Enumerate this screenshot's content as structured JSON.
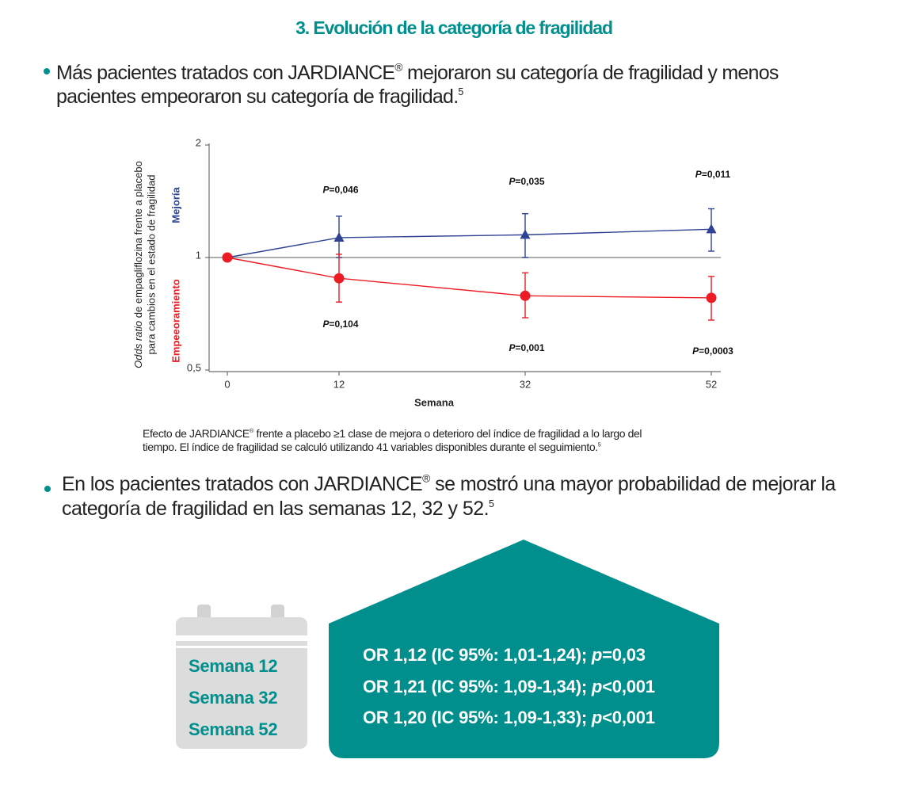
{
  "title": "3. Evolución de la categoría de fragilidad",
  "colors": {
    "teal": "#008f8c",
    "improvement_blue": "#2f4293",
    "worsening_red": "#ed1c24",
    "axis_gray": "#6d6d6d",
    "calendar_gray": "#dcdcdc"
  },
  "bullets": [
    {
      "text_a": "Más pacientes tratados con JARDIANCE",
      "reg": "®",
      "text_b": " mejoraron su categoría de fragilidad y menos",
      "text_c": "pacientes empeoraron su categoría de fragilidad.",
      "ref": "5"
    },
    {
      "text_a": "En los pacientes tratados con JARDIANCE",
      "reg": "®",
      "text_b": " se mostró una mayor probabilidad de mejorar la",
      "text_c": "categoría de fragilidad en las semanas 12, 32 y 52.",
      "ref": "5"
    }
  ],
  "caption": {
    "text_a": "Efecto de JARDIANCE",
    "reg": "®",
    "text_b": " frente a placebo ≥1 clase de mejora o deterioro del índice de fragilidad a lo largo del",
    "text_c": "tiempo. El índice de fragilidad se calculó utilizando 41 variables disponibles durante el seguimiento.",
    "ref": "5"
  },
  "chart_data": {
    "type": "line",
    "title": "",
    "xlabel": "Semana",
    "ylabel": "Odds ratio de empagliflozina frente a placebo para cambios en el estado de fragilidad",
    "ylabel_line1_italic": "Odds ratio",
    "ylabel_line1_rest": " de empagliflozina frente a placebo",
    "ylabel_line2": "para cambios en el estado de fragilidad",
    "y_scale": "log",
    "ylim": [
      0.5,
      2
    ],
    "yticks": [
      {
        "value": 2,
        "label": "2"
      },
      {
        "value": 1,
        "label": "1"
      },
      {
        "value": 0.5,
        "label": "0,5"
      }
    ],
    "x": [
      0,
      12,
      32,
      52
    ],
    "xticks": [
      "0",
      "12",
      "32",
      "52"
    ],
    "reference_line": 1,
    "grid": false,
    "legend_position": "left, rotated labels",
    "series": [
      {
        "name": "Mejoría",
        "color": "#2f4293",
        "marker": "triangle",
        "show_marker": [
          false,
          true,
          true,
          true
        ],
        "values": [
          1.0,
          1.13,
          1.15,
          1.19
        ],
        "ci_lower": [
          null,
          1.0,
          1.0,
          1.04
        ],
        "ci_upper": [
          null,
          1.29,
          1.31,
          1.35
        ],
        "p_labels": [
          null,
          "P=0,046",
          "P=0,035",
          "P=0,011"
        ],
        "p_label_at": [
          null,
          1.51,
          1.59,
          1.66
        ]
      },
      {
        "name": "Empeeoramiento",
        "color": "#ed1c24",
        "marker": "circle",
        "show_marker": [
          true,
          true,
          true,
          true
        ],
        "values": [
          1.0,
          0.88,
          0.79,
          0.78
        ],
        "ci_lower": [
          null,
          0.76,
          0.69,
          0.68
        ],
        "ci_upper": [
          null,
          1.02,
          0.91,
          0.89
        ],
        "p_labels": [
          null,
          "P=0,104",
          "P=0,001",
          "P=0,0003"
        ],
        "p_label_at": [
          null,
          0.66,
          0.57,
          0.56
        ]
      }
    ]
  },
  "calendar": {
    "icon": "calendar-icon",
    "weeks": [
      "Semana 12",
      "Semana 32",
      "Semana 52"
    ]
  },
  "results_box": {
    "icon": "house-shape",
    "lines": [
      {
        "prefix": "OR 1,12 (IC 95%: 1,01-1,24); ",
        "p": "p",
        "suffix": "=0,03"
      },
      {
        "prefix": "OR 1,21 (IC 95%: 1,09-1,34); ",
        "p": "p",
        "suffix": "<0,001"
      },
      {
        "prefix": "OR 1,20 (IC 95%: 1,09-1,33); ",
        "p": "p",
        "suffix": "<0,001"
      }
    ]
  }
}
